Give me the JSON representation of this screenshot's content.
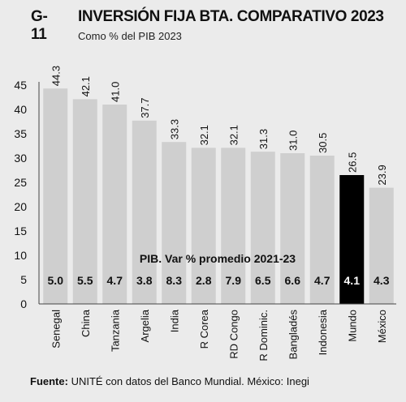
{
  "header": {
    "figure_id": "G-11",
    "title": "INVERSIÓN FIJA BTA. COMPARATIVO 2023",
    "subtitle": "Como % del PIB 2023"
  },
  "footer": {
    "source_label": "Fuente:",
    "source_text": " UNITÉ con datos del Banco Mundial. México: Inegi"
  },
  "colors": {
    "background": "#ebebeb",
    "bar": "#cfcfcf",
    "highlight_bar": "#000000",
    "highlight_text": "#ffffff",
    "text": "#111111"
  },
  "chart_data": {
    "type": "bar",
    "categories": [
      "Senegal",
      "China",
      "Tanzania",
      "Argelia",
      "India",
      "R Corea",
      "RD Congo",
      "R Dominic.",
      "Bangladés",
      "Indonesia",
      "Mundo",
      "México"
    ],
    "series": [
      {
        "values": [
          44.3,
          42.1,
          41.0,
          37.7,
          33.3,
          32.1,
          32.1,
          31.3,
          31.0,
          30.5,
          26.5,
          23.9
        ]
      }
    ],
    "value_labels": [
      "44.3",
      "42.1",
      "41.0",
      "37.7",
      "33.3",
      "32.1",
      "32.1",
      "31.3",
      "31.0",
      "30.5",
      "26.5",
      "23.9"
    ],
    "inner_annotation": {
      "title": "PIB. Var % promedio 2021-23",
      "values": [
        "5.0",
        "5.5",
        "4.7",
        "3.8",
        "8.3",
        "2.8",
        "7.9",
        "6.5",
        "6.6",
        "4.7",
        "4.1",
        "4.3"
      ]
    },
    "highlight_category": "Mundo",
    "ylim": [
      0,
      45
    ],
    "yticks": [
      "0",
      "5",
      "10",
      "15",
      "20",
      "25",
      "30",
      "35",
      "40",
      "45"
    ],
    "grid": false,
    "legend": "none"
  }
}
